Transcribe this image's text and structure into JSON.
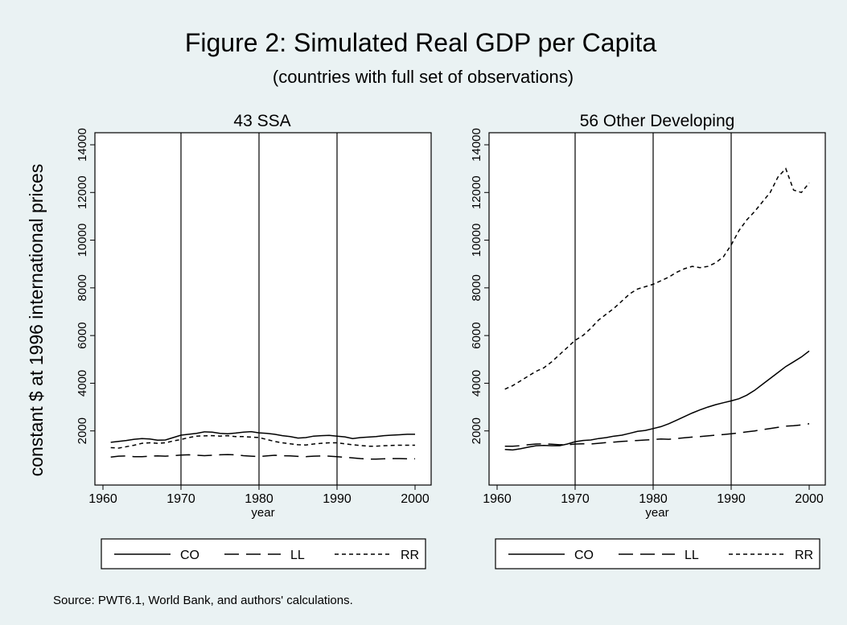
{
  "title": "Figure 2: Simulated Real GDP per Capita",
  "subtitle": "(countries with full set of observations)",
  "ylabel": "constant $ at 1996 international prices",
  "source_note": "Source: PWT6.1, World Bank, and authors' calculations.",
  "colors": {
    "background": "#eaf2f3",
    "plot_background": "#ffffff",
    "line": "#000000"
  },
  "chart_data": [
    {
      "type": "line",
      "title": "43 SSA",
      "xlabel": "year",
      "ylabel": "constant $ at 1996 international prices",
      "xlim": [
        1960,
        2000
      ],
      "ylim": [
        0,
        14000
      ],
      "xticks": [
        1960,
        1970,
        1980,
        1990,
        2000
      ],
      "yticks": [
        2000,
        4000,
        6000,
        8000,
        10000,
        12000,
        14000
      ],
      "vlines": [
        1970,
        1980,
        1990
      ],
      "grid": false,
      "legend_position": "bottom",
      "x": [
        1961,
        1962,
        1963,
        1964,
        1965,
        1966,
        1967,
        1968,
        1969,
        1970,
        1971,
        1972,
        1973,
        1974,
        1975,
        1976,
        1977,
        1978,
        1979,
        1980,
        1981,
        1982,
        1983,
        1984,
        1985,
        1986,
        1987,
        1988,
        1989,
        1990,
        1991,
        1992,
        1993,
        1994,
        1995,
        1996,
        1997,
        1998,
        1999,
        2000
      ],
      "series": [
        {
          "name": "CO",
          "dash": "solid",
          "values": [
            1520,
            1560,
            1600,
            1650,
            1680,
            1660,
            1610,
            1620,
            1720,
            1820,
            1860,
            1900,
            1960,
            1950,
            1900,
            1880,
            1910,
            1950,
            1970,
            1920,
            1900,
            1860,
            1800,
            1760,
            1700,
            1720,
            1780,
            1800,
            1810,
            1780,
            1750,
            1680,
            1720,
            1740,
            1760,
            1800,
            1820,
            1840,
            1860,
            1860
          ]
        },
        {
          "name": "LL",
          "dash": "long",
          "values": [
            900,
            940,
            950,
            920,
            920,
            940,
            950,
            940,
            960,
            990,
            1000,
            980,
            960,
            980,
            1000,
            1010,
            1000,
            960,
            940,
            920,
            950,
            980,
            960,
            950,
            930,
            920,
            940,
            950,
            940,
            920,
            890,
            870,
            840,
            820,
            820,
            830,
            840,
            840,
            830,
            830
          ]
        },
        {
          "name": "RR",
          "dash": "short",
          "values": [
            1300,
            1280,
            1340,
            1400,
            1480,
            1500,
            1480,
            1500,
            1580,
            1640,
            1720,
            1780,
            1790,
            1800,
            1780,
            1800,
            1760,
            1760,
            1740,
            1720,
            1640,
            1560,
            1500,
            1460,
            1420,
            1410,
            1450,
            1480,
            1500,
            1500,
            1460,
            1420,
            1390,
            1360,
            1360,
            1380,
            1390,
            1400,
            1400,
            1400
          ]
        }
      ]
    },
    {
      "type": "line",
      "title": "56 Other Developing",
      "xlabel": "year",
      "ylabel": "",
      "xlim": [
        1960,
        2000
      ],
      "ylim": [
        0,
        14000
      ],
      "xticks": [
        1960,
        1970,
        1980,
        1990,
        2000
      ],
      "yticks": [
        2000,
        4000,
        6000,
        8000,
        10000,
        12000,
        14000
      ],
      "vlines": [
        1970,
        1980,
        1990
      ],
      "grid": false,
      "legend_position": "bottom",
      "x": [
        1961,
        1962,
        1963,
        1964,
        1965,
        1966,
        1967,
        1968,
        1969,
        1970,
        1971,
        1972,
        1973,
        1974,
        1975,
        1976,
        1977,
        1978,
        1979,
        1980,
        1981,
        1982,
        1983,
        1984,
        1985,
        1986,
        1987,
        1988,
        1989,
        1990,
        1991,
        1992,
        1993,
        1994,
        1995,
        1996,
        1997,
        1998,
        1999,
        2000
      ],
      "series": [
        {
          "name": "CO",
          "dash": "solid",
          "values": [
            1220,
            1200,
            1250,
            1320,
            1380,
            1390,
            1380,
            1380,
            1450,
            1550,
            1600,
            1620,
            1680,
            1720,
            1780,
            1820,
            1900,
            1980,
            2020,
            2100,
            2180,
            2300,
            2450,
            2600,
            2750,
            2880,
            3000,
            3100,
            3180,
            3260,
            3350,
            3500,
            3700,
            3950,
            4200,
            4450,
            4700,
            4900,
            5100,
            5350
          ]
        },
        {
          "name": "LL",
          "dash": "long",
          "values": [
            1360,
            1360,
            1380,
            1420,
            1450,
            1460,
            1440,
            1420,
            1420,
            1450,
            1460,
            1450,
            1480,
            1510,
            1530,
            1560,
            1580,
            1600,
            1620,
            1640,
            1660,
            1650,
            1680,
            1710,
            1740,
            1760,
            1790,
            1820,
            1850,
            1880,
            1920,
            1960,
            2000,
            2050,
            2100,
            2150,
            2200,
            2220,
            2250,
            2300
          ]
        },
        {
          "name": "RR",
          "dash": "short",
          "values": [
            3750,
            3900,
            4100,
            4300,
            4500,
            4650,
            4900,
            5200,
            5500,
            5800,
            6000,
            6300,
            6650,
            6900,
            7150,
            7450,
            7750,
            7950,
            8050,
            8150,
            8300,
            8450,
            8650,
            8800,
            8900,
            8850,
            8900,
            9050,
            9300,
            9800,
            10400,
            10850,
            11200,
            11600,
            12000,
            12650,
            13000,
            12100,
            12000,
            12400
          ]
        }
      ]
    }
  ]
}
